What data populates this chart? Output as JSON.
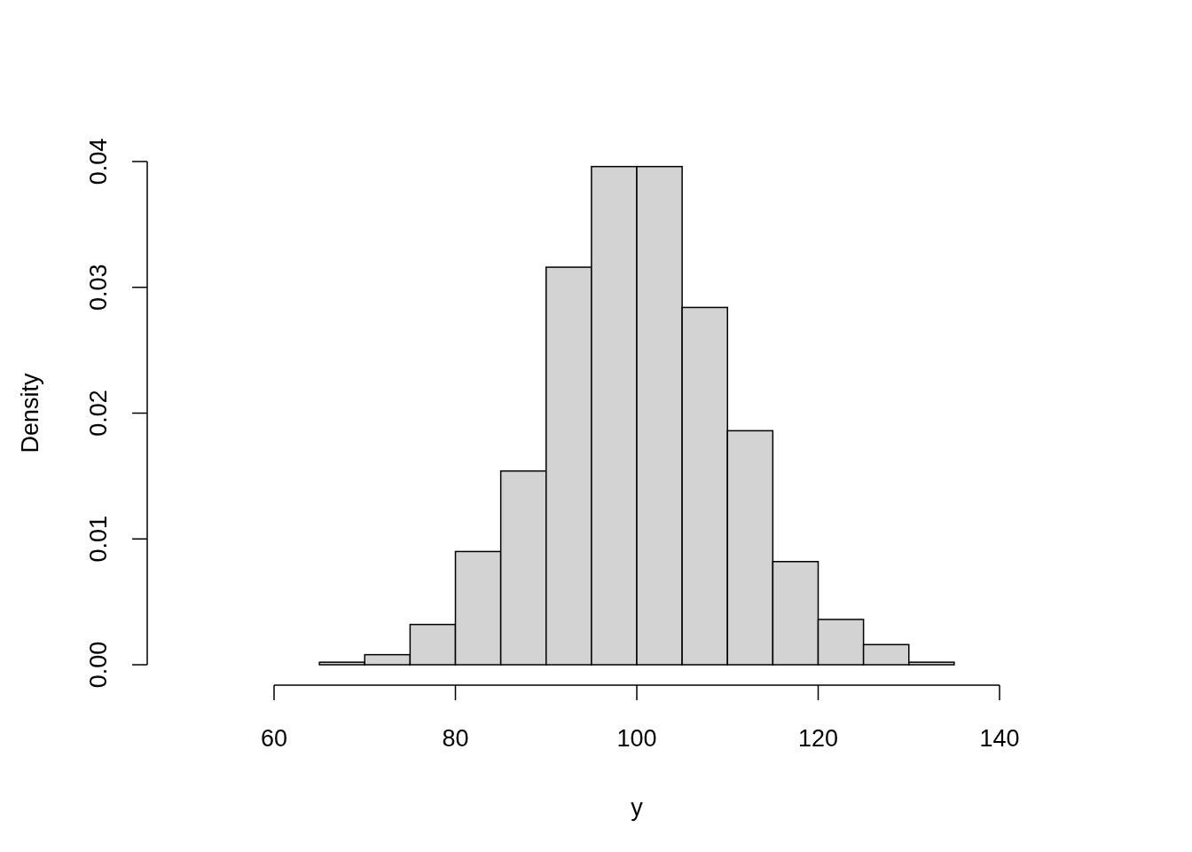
{
  "chart_data": {
    "type": "histogram",
    "xlabel": "y",
    "ylabel": "Density",
    "bins": [
      65,
      70,
      75,
      80,
      85,
      90,
      95,
      100,
      105,
      110,
      115,
      120,
      125,
      130,
      135
    ],
    "values": [
      0.0002,
      0.0008,
      0.0032,
      0.009,
      0.0154,
      0.0316,
      0.0396,
      0.0396,
      0.0284,
      0.0186,
      0.0082,
      0.0036,
      0.0016,
      0.0002
    ],
    "color": "#d3d3d3",
    "xlim": [
      60,
      140
    ],
    "xticks": [
      60,
      80,
      100,
      120,
      140
    ],
    "ylim": [
      0,
      0.04
    ],
    "yticks": [
      {
        "value": 0,
        "label": "0.00"
      },
      {
        "value": 0.01,
        "label": "0.01"
      },
      {
        "value": 0.02,
        "label": "0.02"
      },
      {
        "value": 0.03,
        "label": "0.03"
      },
      {
        "value": 0.04,
        "label": "0.04"
      }
    ],
    "grid": false
  }
}
